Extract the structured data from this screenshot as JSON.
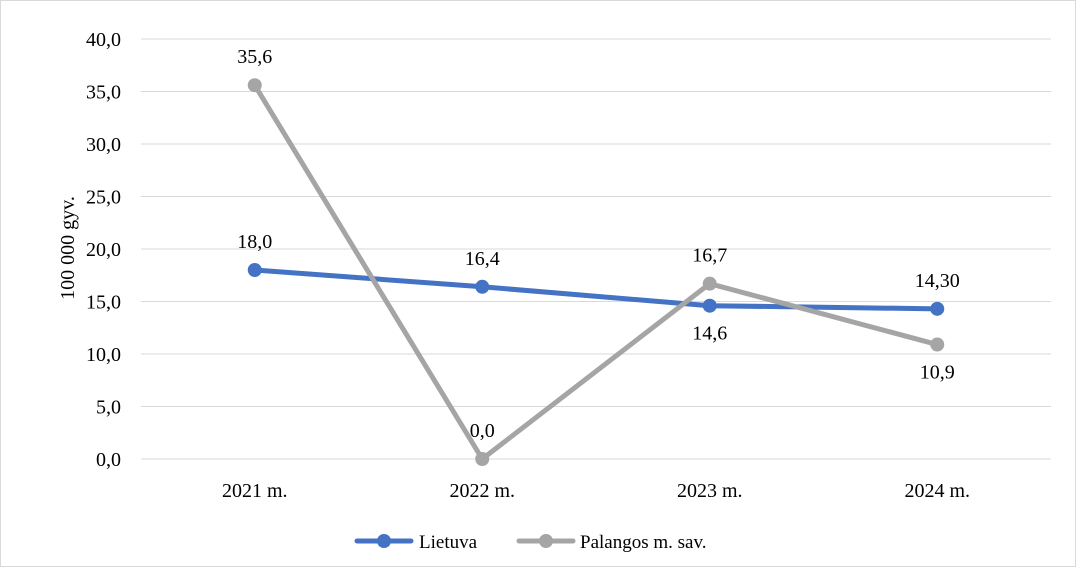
{
  "chart_data": {
    "type": "line",
    "title": "",
    "xlabel": "",
    "ylabel": "100 000 gyv.",
    "categories": [
      "2021 m.",
      "2022 m.",
      "2023 m.",
      "2024 m."
    ],
    "ylim": [
      0,
      40
    ],
    "ytick_step": 5,
    "ytick_labels": [
      "0,0",
      "5,0",
      "10,0",
      "15,0",
      "20,0",
      "25,0",
      "30,0",
      "35,0",
      "40,0"
    ],
    "grid": true,
    "legend_position": "bottom",
    "series": [
      {
        "name": "Lietuva",
        "color": "#4472c4",
        "values": [
          18.0,
          16.4,
          14.6,
          14.3
        ],
        "labels": [
          "18,0",
          "16,4",
          "14,6",
          "14,30"
        ],
        "label_positions": [
          "above",
          "above",
          "below",
          "above"
        ]
      },
      {
        "name": "Palangos m. sav.",
        "color": "#a5a5a5",
        "values": [
          35.6,
          0.0,
          16.7,
          10.9
        ],
        "labels": [
          "35,6",
          "0,0",
          "16,7",
          "10,9"
        ],
        "label_positions": [
          "above",
          "above",
          "above",
          "below"
        ]
      }
    ]
  }
}
